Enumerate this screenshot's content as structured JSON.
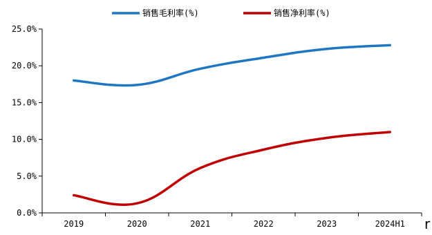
{
  "chart_data": {
    "type": "line",
    "title": "",
    "xlabel": "",
    "ylabel": "",
    "categories": [
      "2019",
      "2020",
      "2021",
      "2022",
      "2023",
      "2024H1"
    ],
    "series": [
      {
        "name": "销售毛利率(%)",
        "color": "#1f77c4",
        "values": [
          18.0,
          17.4,
          19.6,
          21.1,
          22.3,
          22.8
        ]
      },
      {
        "name": "销售净利率(%)",
        "color": "#c00000",
        "values": [
          2.4,
          1.3,
          6.1,
          8.6,
          10.2,
          11.0
        ]
      }
    ],
    "ylim": [
      0,
      25
    ],
    "yticks": [
      0,
      5,
      10,
      15,
      20,
      25
    ],
    "ytick_labels": [
      "0.0%",
      "5.0%",
      "10.0%",
      "15.0%",
      "20.0%",
      "25.0%"
    ],
    "grid": false,
    "legend_position": "top-center",
    "smooth": true
  },
  "stray_text": "r"
}
